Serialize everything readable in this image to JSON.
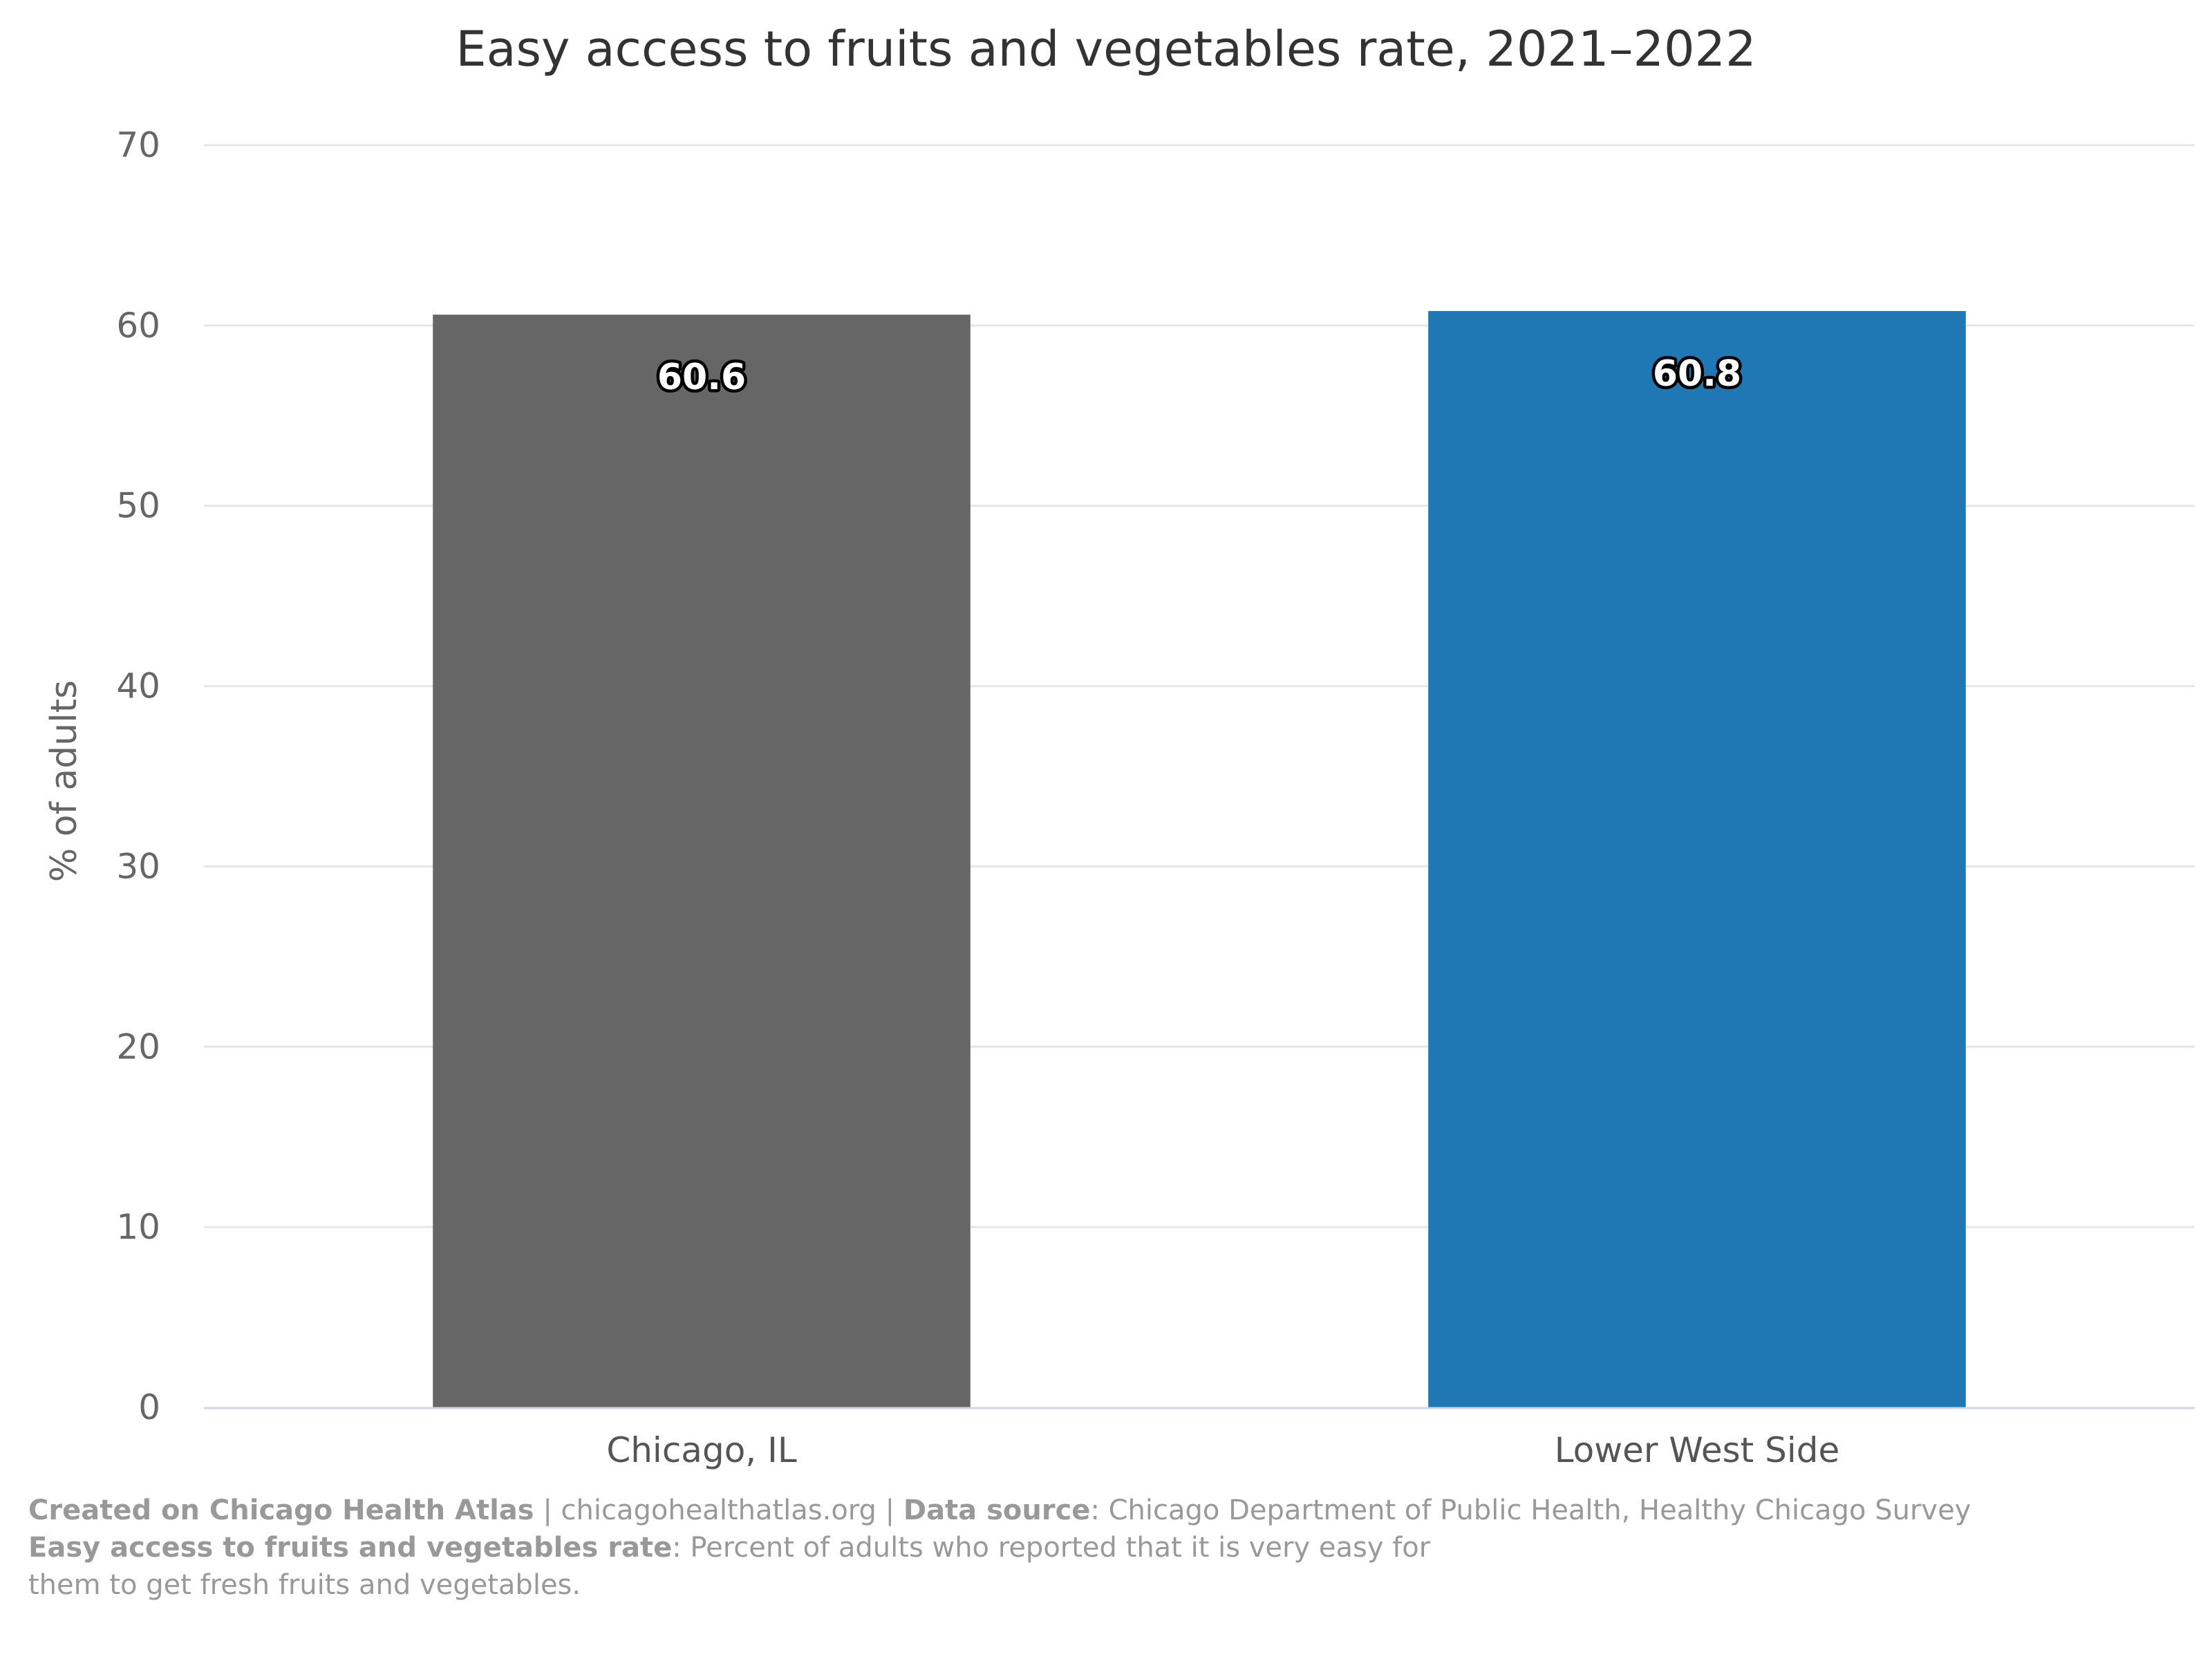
{
  "chart_data": {
    "type": "bar",
    "title": "Easy access to fruits and vegetables rate, 2021–2022",
    "ylabel": "% of adults",
    "xlabel": "",
    "ylim": [
      0,
      70
    ],
    "yticks": [
      0,
      10,
      20,
      30,
      40,
      50,
      60,
      70
    ],
    "categories": [
      "Chicago, IL",
      "Lower West Side"
    ],
    "values": [
      60.6,
      60.8
    ],
    "data_labels": [
      "60.6",
      "60.8"
    ],
    "colors": [
      "#666666",
      "#1f77b4"
    ],
    "grid": true,
    "legend": "none"
  },
  "footer": {
    "created_label": "Created on Chicago Health Atlas",
    "sep1": " | ",
    "site": "chicagohealthatlas.org",
    "sep2": " | ",
    "source_label": "Data source",
    "source_text": ": Chicago Department of Public Health, Healthy Chicago Survey",
    "def_label": "Easy access to fruits and vegetables rate",
    "def_text_1": ": Percent of adults who reported that it is very easy for",
    "def_text_2": "them to get fresh fruits and vegetables."
  }
}
